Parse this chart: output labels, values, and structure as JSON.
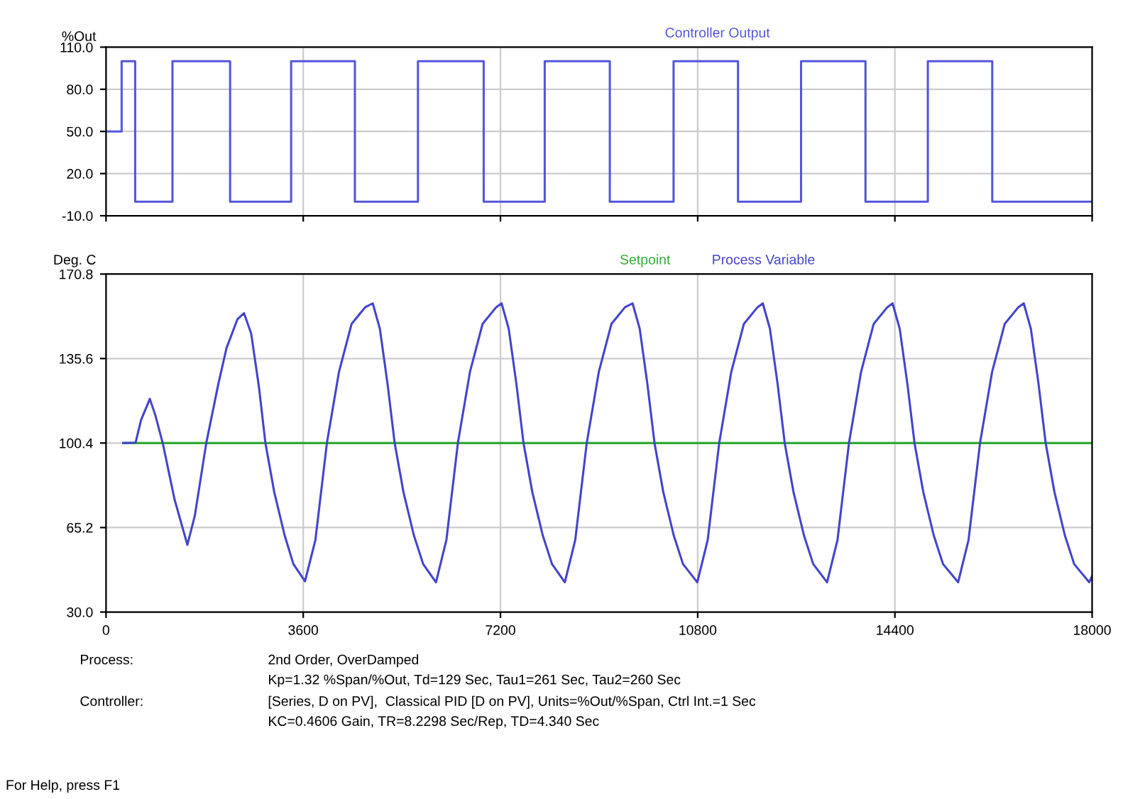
{
  "chart_data": [
    {
      "type": "step",
      "ylabel": "%Out",
      "legend": "top",
      "grid": true,
      "tick_labels": "y",
      "xlim": [
        0,
        18000
      ],
      "xticks": [
        0,
        3600,
        7200,
        10800,
        14400,
        18000
      ],
      "ylim": [
        -10,
        110
      ],
      "yticks": [
        {
          "value": 110,
          "label": "110.0"
        },
        {
          "value": 80,
          "label": "80.0"
        },
        {
          "value": 50,
          "label": "50.0"
        },
        {
          "value": 20,
          "label": "20.0"
        },
        {
          "value": -10,
          "label": "-10.0"
        }
      ],
      "series": [
        {
          "name": "Controller Output",
          "color": "#5555dd",
          "x": [
            0,
            285,
            532,
            1213,
            2265,
            3379,
            4543,
            5694,
            6894,
            8008,
            9196,
            10360,
            11536,
            12687,
            13863,
            15001,
            16177,
            18000
          ],
          "values": [
            50,
            100,
            0,
            100,
            0,
            100,
            0,
            100,
            0,
            100,
            0,
            100,
            0,
            100,
            0,
            100,
            0,
            0
          ]
        }
      ]
    },
    {
      "type": "line",
      "ylabel": "Deg. C",
      "legend": "top",
      "grid": true,
      "xlim": [
        0,
        18000
      ],
      "xticks": [
        0,
        3600,
        7200,
        10800,
        14400,
        18000
      ],
      "ylim": [
        30,
        170.8
      ],
      "yticks": [
        {
          "value": 170.8,
          "label": "170.8"
        },
        {
          "value": 135.6,
          "label": "135.6"
        },
        {
          "value": 100.4,
          "label": "100.4"
        },
        {
          "value": 65.2,
          "label": "65.2"
        },
        {
          "value": 30,
          "label": "30.0"
        }
      ],
      "series": [
        {
          "name": "Setpoint",
          "color": "#33aa33",
          "x": [
            314,
            18000
          ],
          "values": [
            100.4,
            100.4
          ]
        },
        {
          "name": "Process Variable",
          "color": "#4444cc",
          "x": [
            314,
            540,
            640,
            800,
            900,
            1035,
            1250,
            1485,
            1620,
            1830,
            2050,
            2200,
            2400,
            2518,
            2650,
            2790,
            2910,
            3070,
            3260,
            3420,
            3632,
            3822,
            4032,
            4252,
            4482,
            4732,
            4869,
            4999,
            5139,
            5269,
            5429,
            5619,
            5789,
            6023,
            6213,
            6423,
            6643,
            6873,
            7123,
            7221,
            7351,
            7491,
            7621,
            7781,
            7971,
            8141,
            8375,
            8565,
            8775,
            8995,
            9225,
            9475,
            9612,
            9742,
            9882,
            10012,
            10172,
            10362,
            10532,
            10793,
            10983,
            11193,
            11413,
            11643,
            11893,
            11989,
            12119,
            12259,
            12389,
            12549,
            12739,
            12909,
            13162,
            13352,
            13562,
            13782,
            14012,
            14262,
            14358,
            14488,
            14628,
            14758,
            14918,
            15108,
            15278,
            15554,
            15744,
            15954,
            16174,
            16404,
            16654,
            16752,
            16882,
            17022,
            17152,
            17312,
            17502,
            17672,
            17947,
            18000
          ],
          "values": [
            100.4,
            100.6,
            110,
            118.8,
            112,
            100.4,
            77,
            58,
            70,
            100.4,
            125,
            140,
            152,
            154.5,
            146,
            124,
            100.4,
            80,
            62,
            50,
            42.8,
            60,
            100.4,
            130,
            150,
            157,
            158.6,
            148,
            125,
            100.4,
            80,
            62,
            50,
            42.4,
            60,
            100.4,
            130,
            150,
            157,
            158.6,
            148,
            125,
            100.4,
            80,
            62,
            50,
            42.4,
            60,
            100.4,
            130,
            150,
            157,
            158.6,
            148,
            125,
            100.4,
            80,
            62,
            50,
            42.4,
            60,
            100.4,
            130,
            150,
            157,
            158.6,
            148,
            125,
            100.4,
            80,
            62,
            50,
            42.4,
            60,
            100.4,
            130,
            150,
            157,
            158.6,
            148,
            125,
            100.4,
            80,
            62,
            50,
            42.4,
            60,
            100.4,
            130,
            150,
            157,
            158.6,
            148,
            125,
            100.4,
            80,
            62,
            50,
            42.4,
            45
          ]
        }
      ],
      "annotations": [
        "Process:",
        "2nd Order, OverDamped",
        "Kp=1.32 %Span/%Out, Td=129 Sec, Tau1=261 Sec, Tau2=260 Sec",
        "Controller:",
        "[Series, D on PV],  Classical PID [D on PV], Units=%Out/%Span, Ctrl Int.=1 Sec",
        "KC=0.4606 Gain, TR=8.2298 Sec/Rep, TD=4.340 Sec",
        "For Help, press F1"
      ]
    }
  ]
}
